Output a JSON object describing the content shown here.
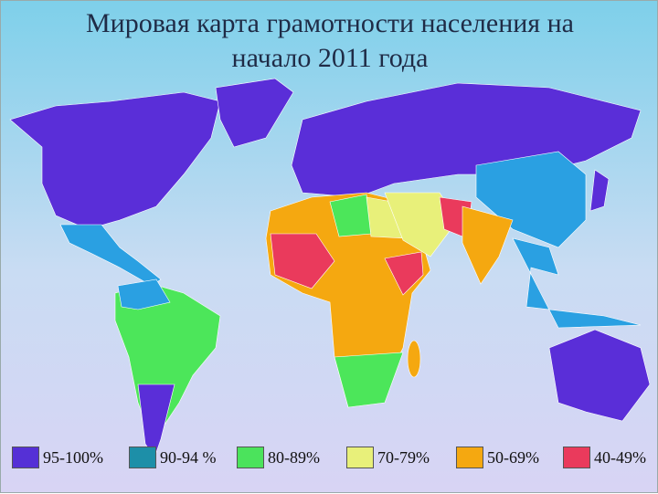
{
  "title": [
    "Мировая карта грамотности населения на",
    "начало 2011 года"
  ],
  "legend": [
    {
      "label": "95-100%",
      "color": "#5530d6"
    },
    {
      "label": "90-94 %",
      "color": "#1d8fa8"
    },
    {
      "label": "80-89%",
      "color": "#4be35c"
    },
    {
      "label": "70-79%",
      "color": "#e8f07a"
    },
    {
      "label": "50-69%",
      "color": "#f5a810"
    },
    {
      "label": "40-49%",
      "color": "#ea3a5c"
    }
  ]
}
